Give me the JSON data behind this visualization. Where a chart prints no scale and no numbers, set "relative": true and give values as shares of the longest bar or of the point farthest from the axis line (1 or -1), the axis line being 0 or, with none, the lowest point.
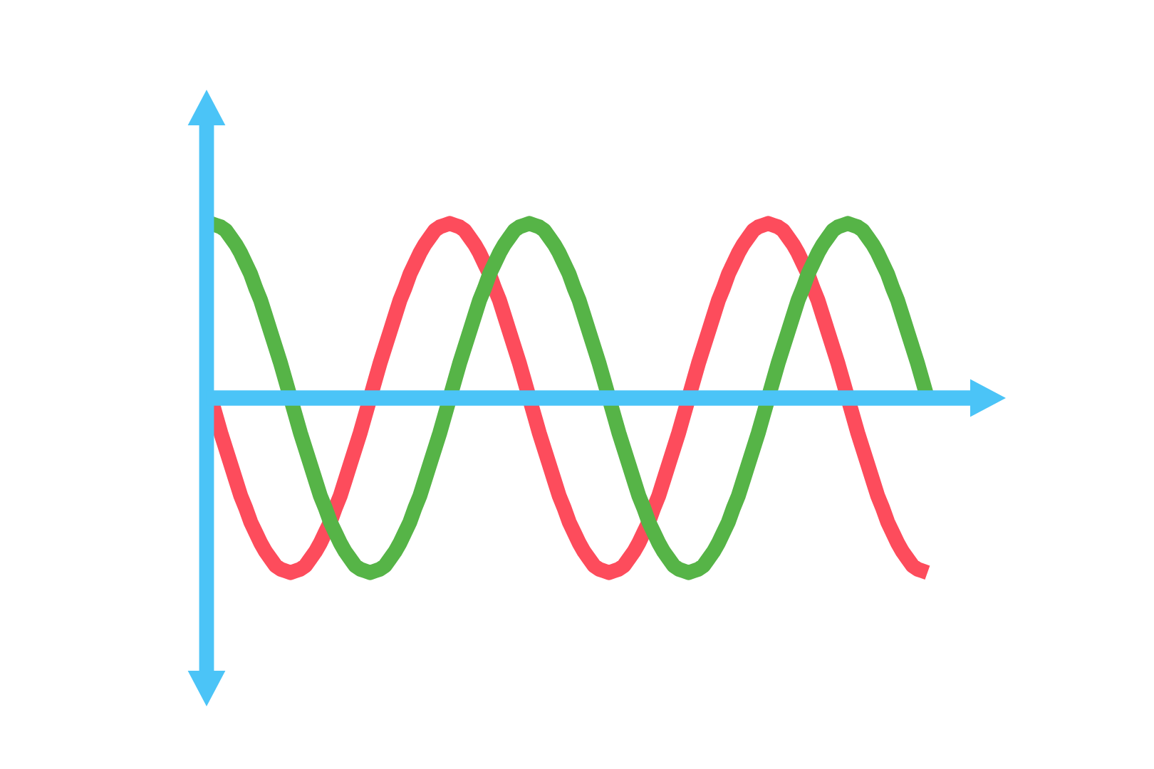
{
  "chart_data": {
    "type": "line",
    "relative": true,
    "ref_lines": [
      {
        "axis": "y",
        "value": 0,
        "color": "#4bc4f7"
      }
    ],
    "categories": [
      null,
      null,
      null,
      null,
      null,
      null,
      null,
      null,
      null,
      null,
      null,
      null,
      null,
      null,
      null,
      null,
      null,
      null,
      null,
      null,
      null,
      null,
      null,
      null,
      null,
      null,
      null,
      null,
      null,
      null,
      null,
      null,
      null,
      null,
      null,
      null,
      null,
      null,
      null,
      null,
      null,
      null,
      null,
      null,
      null,
      null,
      null,
      null,
      null,
      null,
      null,
      null,
      null,
      null,
      null,
      null,
      null,
      null,
      null,
      null,
      null,
      null,
      null,
      null,
      null,
      null,
      null,
      null,
      null,
      null,
      null,
      null,
      null,
      null,
      null,
      null,
      null,
      null,
      null,
      null,
      null,
      null,
      null,
      null,
      null,
      null,
      null,
      null,
      null,
      null,
      null,
      null,
      null,
      null,
      null,
      null,
      null,
      null,
      null,
      null,
      null,
      null,
      null,
      null,
      null,
      null,
      null,
      null,
      null,
      null,
      null,
      null,
      null,
      null,
      null,
      null,
      null,
      null,
      null,
      null,
      null,
      null,
      null,
      null,
      null,
      null,
      null,
      null,
      null,
      null,
      null,
      null,
      null,
      null,
      null,
      null,
      null,
      null,
      null,
      null,
      null,
      null,
      null,
      null,
      null
    ],
    "series": [
      {
        "color": "#fd4c5c",
        "values": [
          0,
          -0.1,
          -0.2,
          -0.29,
          -0.38,
          -0.47,
          -0.56,
          -0.63,
          -0.71,
          -0.77,
          -0.83,
          -0.88,
          -0.92,
          -0.96,
          -0.98,
          -0.99,
          -1,
          -0.99,
          -0.98,
          -0.96,
          -0.92,
          -0.88,
          -0.83,
          -0.77,
          -0.71,
          -0.63,
          -0.56,
          -0.47,
          -0.38,
          -0.29,
          -0.2,
          -0.1,
          0,
          0.1,
          0.2,
          0.29,
          0.38,
          0.47,
          0.56,
          0.63,
          0.71,
          0.77,
          0.83,
          0.88,
          0.92,
          0.96,
          0.98,
          0.99,
          1,
          0.99,
          0.98,
          0.96,
          0.92,
          0.88,
          0.83,
          0.77,
          0.71,
          0.63,
          0.56,
          0.47,
          0.38,
          0.29,
          0.2,
          0.1,
          0,
          -0.1,
          -0.2,
          -0.29,
          -0.38,
          -0.47,
          -0.56,
          -0.63,
          -0.71,
          -0.77,
          -0.83,
          -0.88,
          -0.92,
          -0.96,
          -0.98,
          -0.99,
          -1,
          -0.99,
          -0.98,
          -0.96,
          -0.92,
          -0.88,
          -0.83,
          -0.77,
          -0.71,
          -0.63,
          -0.56,
          -0.47,
          -0.38,
          -0.29,
          -0.2,
          -0.1,
          0,
          0.1,
          0.2,
          0.29,
          0.38,
          0.47,
          0.56,
          0.63,
          0.71,
          0.77,
          0.83,
          0.88,
          0.92,
          0.96,
          0.98,
          0.99,
          1,
          0.99,
          0.98,
          0.96,
          0.92,
          0.88,
          0.83,
          0.77,
          0.71,
          0.63,
          0.56,
          0.47,
          0.38,
          0.29,
          0.2,
          0.1,
          0,
          -0.1,
          -0.2,
          -0.29,
          -0.38,
          -0.47,
          -0.56,
          -0.63,
          -0.71,
          -0.77,
          -0.83,
          -0.88,
          -0.92,
          -0.96,
          -0.98,
          -0.99,
          -1
        ]
      },
      {
        "color": "#56b447",
        "values": [
          1,
          0.99,
          0.98,
          0.96,
          0.92,
          0.88,
          0.83,
          0.77,
          0.71,
          0.63,
          0.56,
          0.47,
          0.38,
          0.29,
          0.2,
          0.1,
          0,
          -0.1,
          -0.2,
          -0.29,
          -0.38,
          -0.47,
          -0.56,
          -0.63,
          -0.71,
          -0.77,
          -0.83,
          -0.88,
          -0.92,
          -0.96,
          -0.98,
          -0.99,
          -1,
          -0.99,
          -0.98,
          -0.96,
          -0.92,
          -0.88,
          -0.83,
          -0.77,
          -0.71,
          -0.63,
          -0.56,
          -0.47,
          -0.38,
          -0.29,
          -0.2,
          -0.1,
          0,
          0.1,
          0.2,
          0.29,
          0.38,
          0.47,
          0.56,
          0.63,
          0.71,
          0.77,
          0.83,
          0.88,
          0.92,
          0.96,
          0.98,
          0.99,
          1,
          0.99,
          0.98,
          0.96,
          0.92,
          0.88,
          0.83,
          0.77,
          0.71,
          0.63,
          0.56,
          0.47,
          0.38,
          0.29,
          0.2,
          0.1,
          0,
          -0.1,
          -0.2,
          -0.29,
          -0.38,
          -0.47,
          -0.56,
          -0.63,
          -0.71,
          -0.77,
          -0.83,
          -0.88,
          -0.92,
          -0.96,
          -0.98,
          -0.99,
          -1,
          -0.99,
          -0.98,
          -0.96,
          -0.92,
          -0.88,
          -0.83,
          -0.77,
          -0.71,
          -0.63,
          -0.56,
          -0.47,
          -0.38,
          -0.29,
          -0.2,
          -0.1,
          0,
          0.1,
          0.2,
          0.29,
          0.38,
          0.47,
          0.56,
          0.63,
          0.71,
          0.77,
          0.83,
          0.88,
          0.92,
          0.96,
          0.98,
          0.99,
          1,
          0.99,
          0.98,
          0.96,
          0.92,
          0.88,
          0.83,
          0.77,
          0.71,
          0.63,
          0.56,
          0.47,
          0.38,
          0.29,
          0.2,
          0.1,
          0
        ]
      }
    ]
  }
}
